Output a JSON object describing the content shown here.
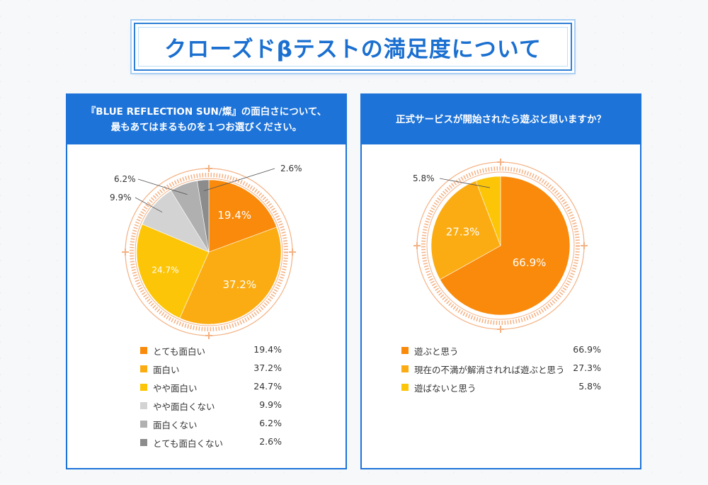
{
  "title": "クローズドβテストの満足度について",
  "colors": {
    "brand_blue": "#1d73d8",
    "ring": "#f4b183",
    "orange": "#f98a0b",
    "light_orange": "#fbac12",
    "yellow": "#fcc507",
    "light_gray": "#d3d3d3",
    "mid_gray": "#b0b0b0",
    "dark_gray": "#8c8c8c"
  },
  "chart_data": [
    {
      "type": "pie",
      "title_line1": "『BLUE REFLECTION SUN/燦』の面白さについて、",
      "title_line2": "最もあてはまるものを１つお選びください。",
      "slices": [
        {
          "label": "とても面白い",
          "value": 19.4,
          "display": "19.4%",
          "color": "#f98a0b",
          "label_mode": "inside"
        },
        {
          "label": "面白い",
          "value": 37.2,
          "display": "37.2%",
          "color": "#fbac12",
          "label_mode": "inside"
        },
        {
          "label": "やや面白い",
          "value": 24.7,
          "display": "24.7%",
          "color": "#fcc507",
          "label_mode": "inside-small"
        },
        {
          "label": "やや面白くない",
          "value": 9.9,
          "display": "9.9%",
          "color": "#d3d3d3",
          "label_mode": "callout-left"
        },
        {
          "label": "面白くない",
          "value": 6.2,
          "display": "6.2%",
          "color": "#b0b0b0",
          "label_mode": "callout-left"
        },
        {
          "label": "とても面白くない",
          "value": 2.6,
          "display": "2.6%",
          "color": "#8c8c8c",
          "label_mode": "callout-right"
        }
      ]
    },
    {
      "type": "pie",
      "title_line1": "正式サービスが開始されたら遊ぶと思いますか？",
      "slices": [
        {
          "label": "遊ぶと思う",
          "value": 66.9,
          "display": "66.9%",
          "color": "#f98a0b",
          "label_mode": "inside"
        },
        {
          "label": "現在の不満が解消されれば遊ぶと思う",
          "value": 27.3,
          "display": "27.3%",
          "color": "#fbac12",
          "label_mode": "inside"
        },
        {
          "label": "遊ばないと思う",
          "value": 5.8,
          "display": "5.8%",
          "color": "#fcc507",
          "label_mode": "callout-left"
        }
      ]
    }
  ]
}
